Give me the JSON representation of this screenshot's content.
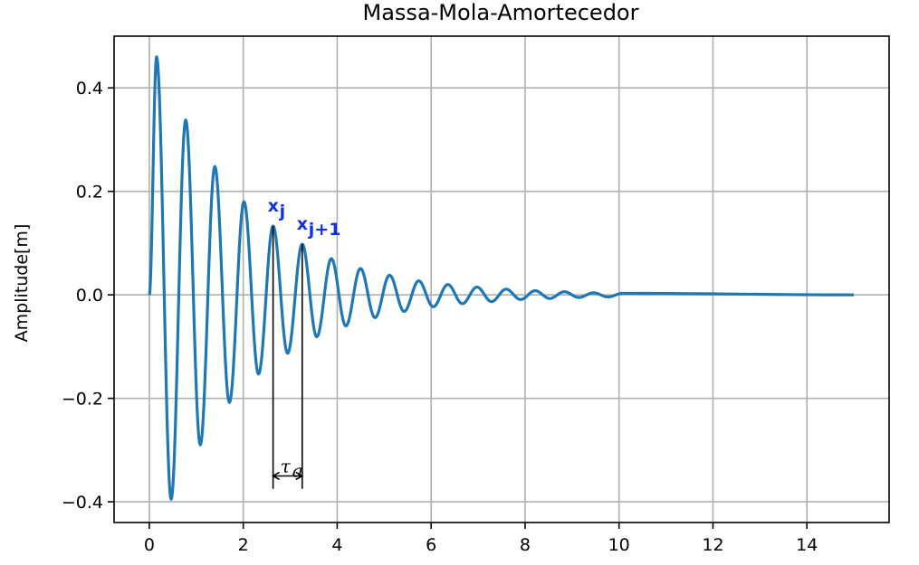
{
  "chart_data": {
    "type": "line",
    "title": "Massa-Mola-Amortecedor",
    "xlabel": "",
    "ylabel": "Amplitude[m]",
    "xlim": [
      -0.75,
      15.75
    ],
    "ylim": [
      -0.44,
      0.5
    ],
    "xticks": [
      0,
      2,
      4,
      6,
      8,
      10,
      12,
      14
    ],
    "yticks": [
      -0.4,
      -0.2,
      0.0,
      0.2,
      0.4
    ],
    "xtick_labels": [
      "0",
      "2",
      "4",
      "6",
      "8",
      "10",
      "12",
      "14"
    ],
    "ytick_labels": [
      "−0.4",
      "−0.2",
      "0.0",
      "0.2",
      "0.4"
    ],
    "grid": true,
    "series": [
      {
        "color": "#1f77b4",
        "x": [
          0,
          0.155,
          0.465,
          0.775,
          1.085,
          1.395,
          1.705,
          2.015,
          2.325,
          2.635,
          2.945,
          3.255,
          3.565,
          3.875,
          4.185,
          4.495,
          4.805,
          5.115,
          5.425,
          5.735,
          6.045,
          6.355,
          6.665,
          6.975,
          7.285,
          7.595,
          7.905,
          8.215,
          8.525,
          8.835,
          9.145,
          9.455,
          9.765,
          10.075,
          15
        ],
        "y": [
          0,
          0.46,
          -0.395,
          0.338,
          -0.29,
          0.248,
          -0.208,
          0.18,
          -0.153,
          0.133,
          -0.113,
          0.098,
          -0.081,
          0.07,
          -0.06,
          0.051,
          -0.044,
          0.038,
          -0.032,
          0.027,
          -0.023,
          0.02,
          -0.017,
          0.015,
          -0.013,
          0.011,
          -0.009,
          0.008,
          -0.007,
          0.006,
          -0.005,
          0.004,
          -0.004,
          0.003,
          0
        ]
      }
    ],
    "annotations": {
      "peak_j": {
        "label": "x",
        "subscript": "j",
        "x": 2.635,
        "y": 0.133,
        "color": "#1030e0"
      },
      "peak_j1": {
        "label": "x",
        "subscript": "j+1",
        "x": 3.255,
        "y": 0.098,
        "color": "#1030e0"
      },
      "period": {
        "label": "τ",
        "subscript": "a",
        "x_start": 2.635,
        "x_end": 3.255,
        "y_bottom": -0.375,
        "y_arrow": -0.35
      }
    }
  }
}
